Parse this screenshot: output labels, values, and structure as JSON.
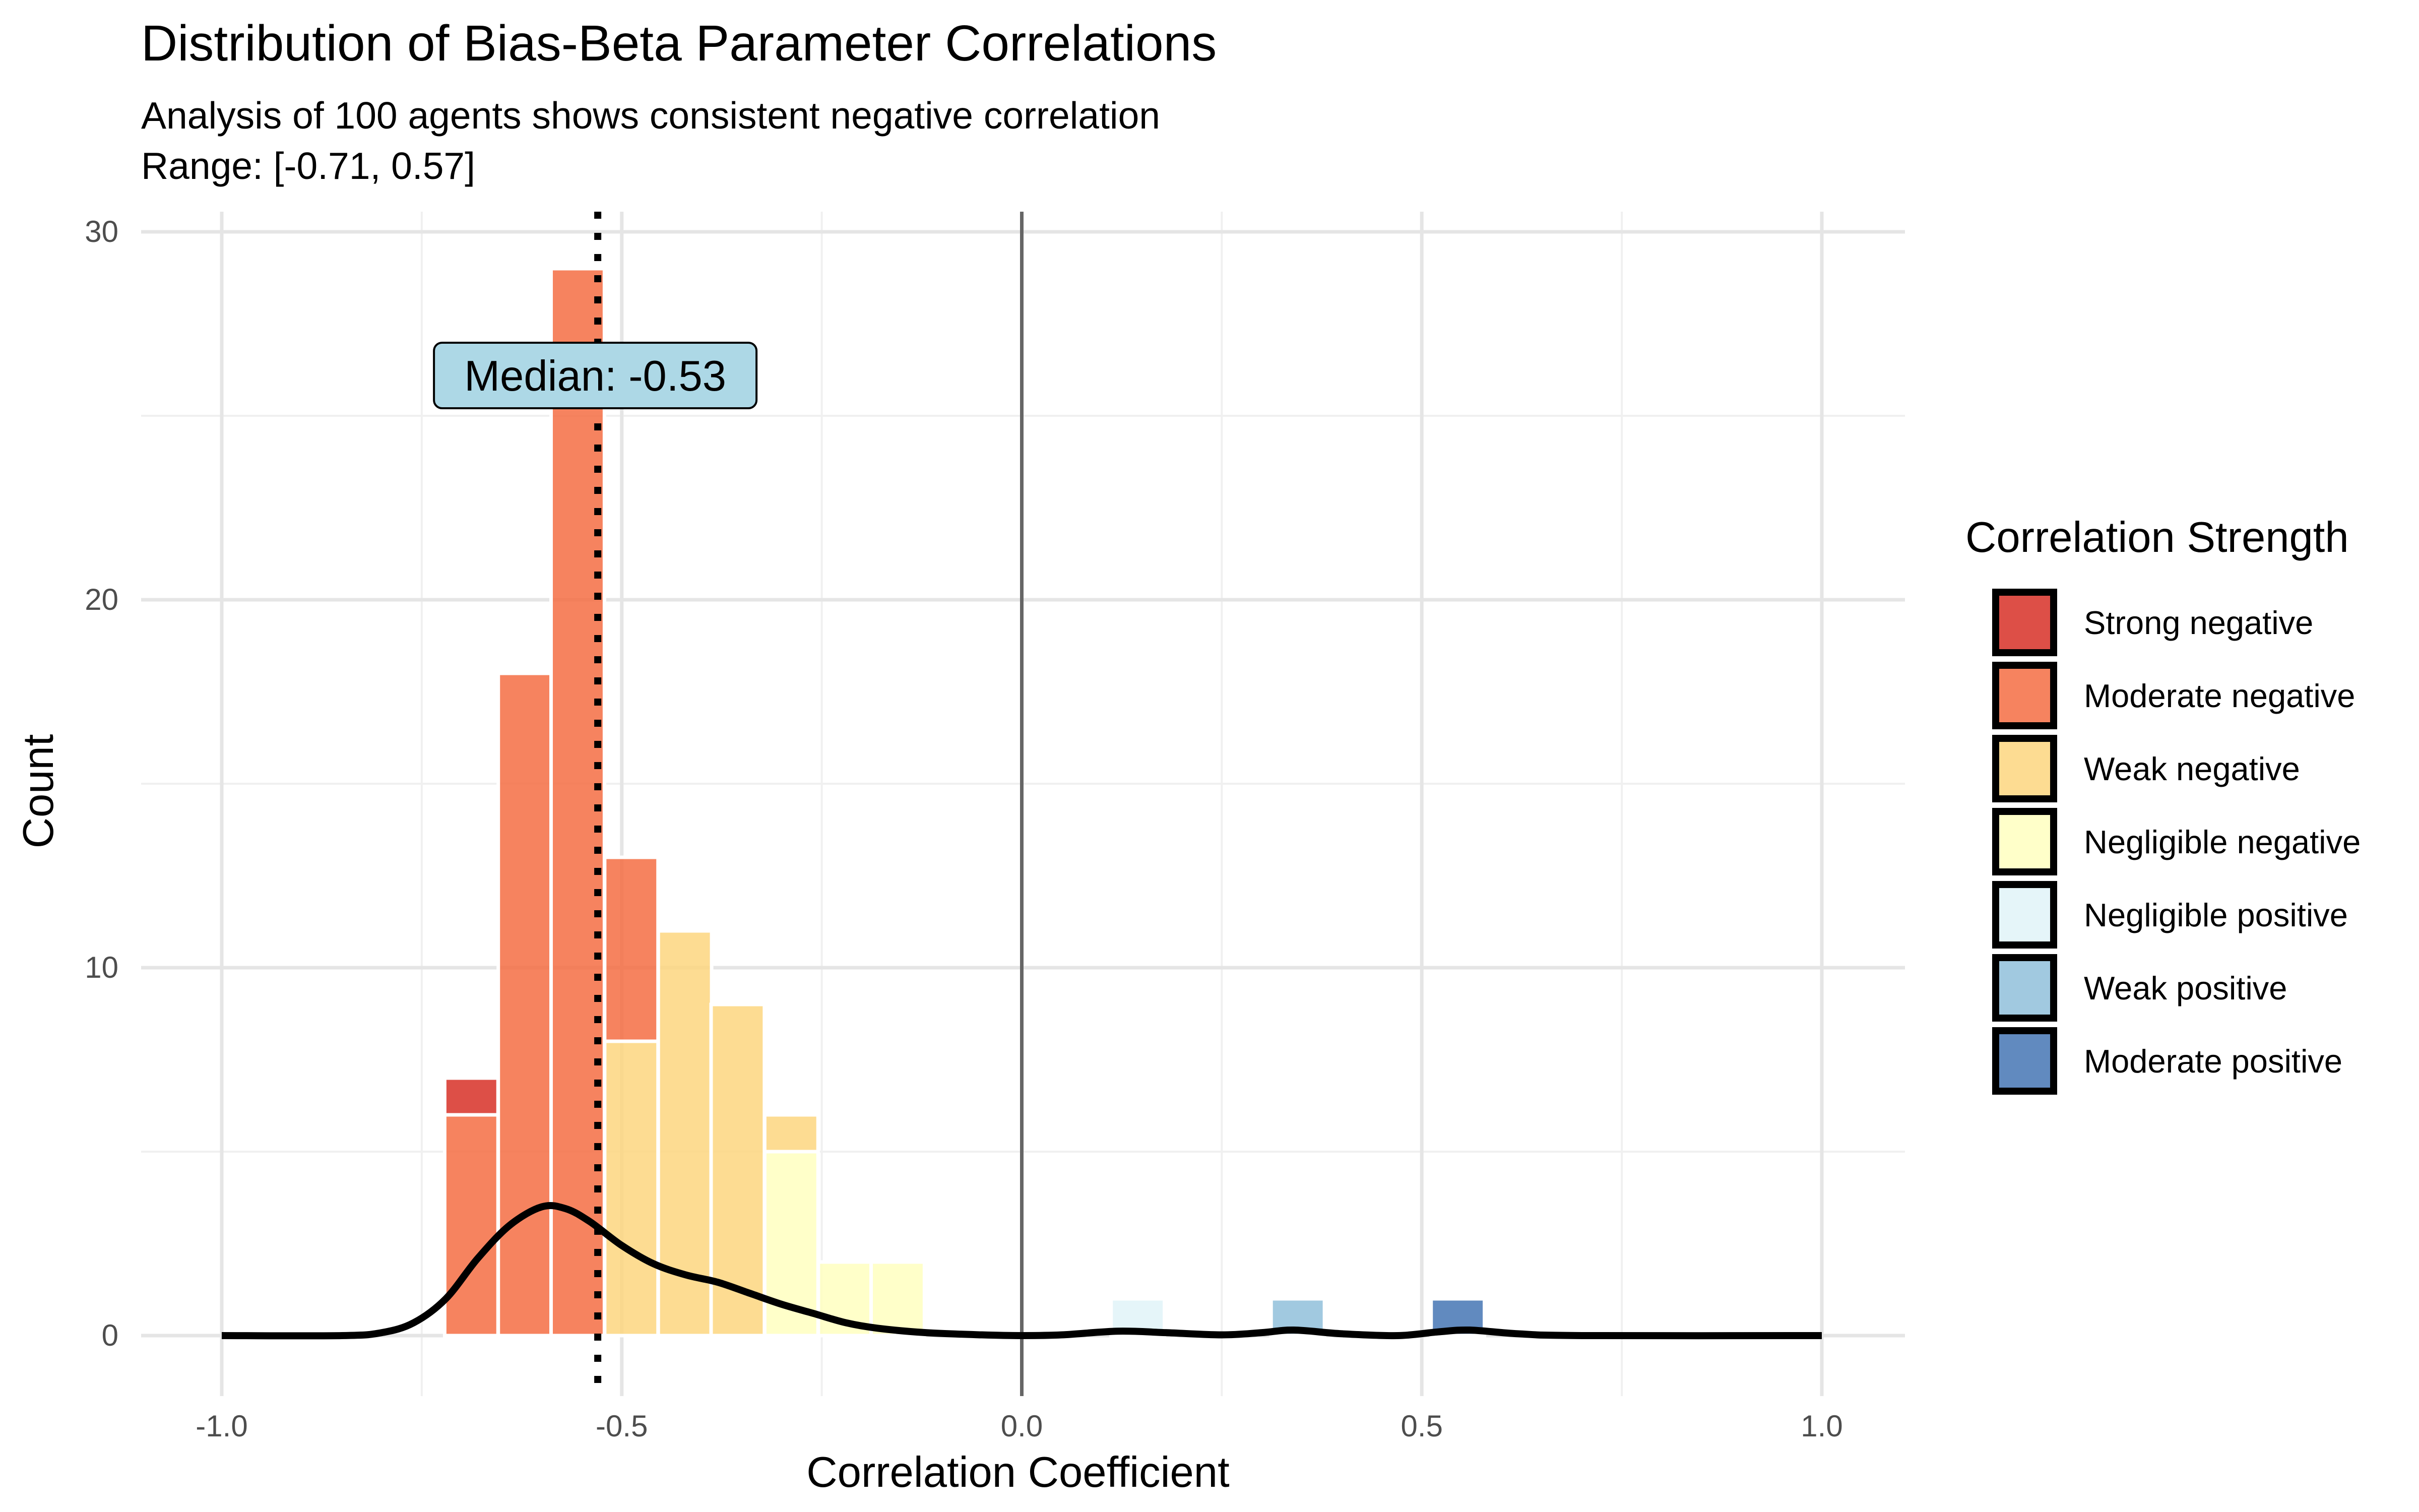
{
  "chart_data": {
    "type": "bar",
    "title": "Distribution of Bias-Beta Parameter Correlations",
    "subtitle_lines": [
      "Analysis of 100 agents shows consistent negative correlation",
      "Range: [-0.71, 0.57]"
    ],
    "xlabel": "Correlation Coefficient",
    "ylabel": "Count",
    "xlim": [
      -1.0,
      1.0
    ],
    "ylim": [
      0,
      30
    ],
    "x_ticks": [
      -1.0,
      -0.5,
      0.0,
      0.5,
      1.0
    ],
    "x_tick_labels": [
      "-1.0",
      "-0.5",
      "0.0",
      "0.5",
      "1.0"
    ],
    "y_ticks": [
      0,
      10,
      20,
      30
    ],
    "y_tick_labels": [
      "0",
      "10",
      "20",
      "30"
    ],
    "grid": true,
    "bin_width": 0.0667,
    "series": [
      {
        "name": "Strong negative",
        "color": "#d73027",
        "bins": [
          {
            "x": -0.688,
            "count": 1,
            "base": 6
          }
        ]
      },
      {
        "name": "Moderate negative",
        "color": "#f46d43",
        "bins": [
          {
            "x": -0.688,
            "count": 6,
            "base": 0
          },
          {
            "x": -0.621,
            "count": 18,
            "base": 0
          },
          {
            "x": -0.555,
            "count": 29,
            "base": 0
          },
          {
            "x": -0.488,
            "count": 5,
            "base": 8
          }
        ]
      },
      {
        "name": "Weak negative",
        "color": "#fdd67f",
        "bins": [
          {
            "x": -0.488,
            "count": 8,
            "base": 0
          },
          {
            "x": -0.421,
            "count": 11,
            "base": 0
          },
          {
            "x": -0.355,
            "count": 9,
            "base": 0
          },
          {
            "x": -0.288,
            "count": 1,
            "base": 5
          }
        ]
      },
      {
        "name": "Negligible negative",
        "color": "#ffffbf",
        "bins": [
          {
            "x": -0.288,
            "count": 5,
            "base": 0
          },
          {
            "x": -0.221,
            "count": 2,
            "base": 0
          },
          {
            "x": -0.155,
            "count": 2,
            "base": 0
          }
        ]
      },
      {
        "name": "Negligible positive",
        "color": "#e0f3f8",
        "bins": [
          {
            "x": 0.145,
            "count": 1,
            "base": 0
          }
        ]
      },
      {
        "name": "Weak positive",
        "color": "#91bfdb",
        "bins": [
          {
            "x": 0.345,
            "count": 1,
            "base": 0
          }
        ]
      },
      {
        "name": "Moderate positive",
        "color": "#4575b4",
        "bins": [
          {
            "x": 0.545,
            "count": 1,
            "base": 0
          }
        ]
      }
    ],
    "density_curve": [
      [
        -1.0,
        0
      ],
      [
        -0.85,
        0.0
      ],
      [
        -0.8,
        0.08
      ],
      [
        -0.76,
        0.35
      ],
      [
        -0.72,
        1.0
      ],
      [
        -0.68,
        2.1
      ],
      [
        -0.64,
        3.0
      ],
      [
        -0.6,
        3.5
      ],
      [
        -0.57,
        3.45
      ],
      [
        -0.54,
        3.1
      ],
      [
        -0.5,
        2.45
      ],
      [
        -0.46,
        1.95
      ],
      [
        -0.42,
        1.65
      ],
      [
        -0.38,
        1.45
      ],
      [
        -0.34,
        1.15
      ],
      [
        -0.3,
        0.85
      ],
      [
        -0.26,
        0.6
      ],
      [
        -0.22,
        0.35
      ],
      [
        -0.18,
        0.2
      ],
      [
        -0.12,
        0.08
      ],
      [
        -0.05,
        0.02
      ],
      [
        0.0,
        0.0
      ],
      [
        0.05,
        0.02
      ],
      [
        0.12,
        0.12
      ],
      [
        0.18,
        0.08
      ],
      [
        0.25,
        0.02
      ],
      [
        0.3,
        0.08
      ],
      [
        0.34,
        0.15
      ],
      [
        0.4,
        0.05
      ],
      [
        0.47,
        0.0
      ],
      [
        0.52,
        0.1
      ],
      [
        0.56,
        0.15
      ],
      [
        0.62,
        0.05
      ],
      [
        0.7,
        0.0
      ],
      [
        1.0,
        0.0
      ]
    ],
    "median": -0.53,
    "median_label": "Median: -0.53",
    "reference_line_x": 0.0,
    "legend": {
      "title": "Correlation Strength",
      "position": "right"
    }
  }
}
